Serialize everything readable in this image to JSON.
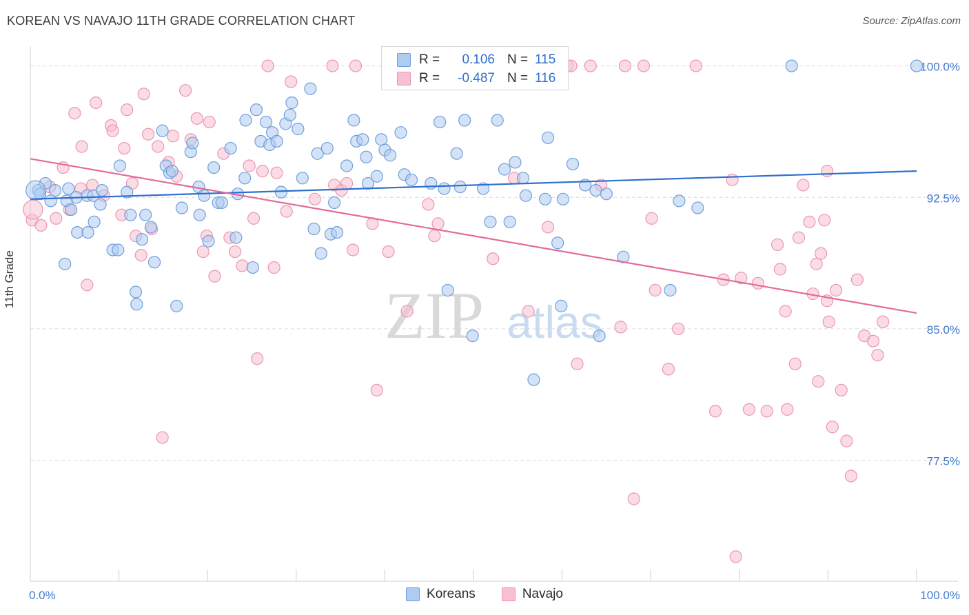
{
  "title": "KOREAN VS NAVAJO 11TH GRADE CORRELATION CHART",
  "source": "Source: ZipAtlas.com",
  "watermark": {
    "zip": "ZIP",
    "atlas": "atlas"
  },
  "legend": {
    "rows": [
      {
        "r_label": "R =",
        "r_value": "0.106",
        "n_label": "N =",
        "n_value": "115"
      },
      {
        "r_label": "R =",
        "r_value": "-0.487",
        "n_label": "N =",
        "n_value": "116"
      }
    ]
  },
  "bottom_legend": [
    "Koreans",
    "Navajo"
  ],
  "colors": {
    "korean_fill": "#aecbf0",
    "korean_stroke": "#6f9fdc",
    "korean_line": "#2f6fcf",
    "navajo_fill": "#f7bfd0",
    "navajo_stroke": "#ec95b2",
    "navajo_line": "#e46a9a",
    "tick_label": "#3f78d0",
    "grid": "#dcdcdc"
  },
  "chart_data": {
    "type": "scatter",
    "title": "KOREAN VS NAVAJO 11TH GRADE CORRELATION CHART",
    "xlabel": "",
    "ylabel": "11th Grade",
    "xlim": [
      0,
      100
    ],
    "ylim": [
      70.6,
      101.4
    ],
    "x_tick_labels": [
      "0.0%",
      "100.0%"
    ],
    "y_ticks": [
      77.5,
      85.0,
      92.5,
      100.0
    ],
    "y_tick_labels": [
      "77.5%",
      "85.0%",
      "92.5%",
      "100.0%"
    ],
    "grid": "horizontal dashed",
    "legend_position": "top-center",
    "series": [
      {
        "name": "Koreans",
        "r": 0.106,
        "n": 115,
        "trend": [
          [
            0,
            92.4
          ],
          [
            100,
            94.0
          ]
        ],
        "points": [
          [
            0.9,
            92.9
          ],
          [
            1.1,
            92.7
          ],
          [
            1.7,
            93.3
          ],
          [
            2.3,
            92.3
          ],
          [
            2.8,
            92.9
          ],
          [
            4.1,
            92.3
          ],
          [
            4.3,
            93.0
          ],
          [
            3.9,
            88.7
          ],
          [
            4.6,
            91.8
          ],
          [
            5.2,
            92.5
          ],
          [
            5.3,
            90.5
          ],
          [
            6.4,
            92.6
          ],
          [
            6.5,
            90.5
          ],
          [
            7.1,
            92.6
          ],
          [
            7.2,
            91.1
          ],
          [
            7.9,
            92.1
          ],
          [
            8.1,
            92.9
          ],
          [
            9.3,
            89.5
          ],
          [
            9.9,
            89.5
          ],
          [
            10.1,
            94.3
          ],
          [
            10.9,
            92.8
          ],
          [
            11.3,
            91.5
          ],
          [
            11.9,
            87.1
          ],
          [
            12.0,
            86.4
          ],
          [
            12.6,
            90.1
          ],
          [
            13.0,
            91.5
          ],
          [
            13.6,
            90.8
          ],
          [
            14.0,
            88.8
          ],
          [
            14.9,
            96.3
          ],
          [
            15.3,
            94.3
          ],
          [
            15.7,
            93.9
          ],
          [
            16.0,
            94.0
          ],
          [
            16.5,
            86.3
          ],
          [
            17.1,
            91.9
          ],
          [
            18.1,
            95.1
          ],
          [
            18.3,
            95.6
          ],
          [
            19.0,
            93.1
          ],
          [
            19.1,
            91.5
          ],
          [
            19.6,
            92.6
          ],
          [
            20.1,
            90.0
          ],
          [
            20.7,
            94.2
          ],
          [
            21.2,
            92.2
          ],
          [
            21.6,
            92.2
          ],
          [
            22.6,
            95.3
          ],
          [
            23.2,
            90.2
          ],
          [
            23.4,
            92.7
          ],
          [
            24.2,
            93.6
          ],
          [
            24.3,
            96.9
          ],
          [
            25.1,
            88.5
          ],
          [
            25.5,
            97.5
          ],
          [
            26.0,
            95.7
          ],
          [
            26.6,
            96.8
          ],
          [
            27.0,
            95.5
          ],
          [
            27.3,
            96.2
          ],
          [
            27.8,
            95.7
          ],
          [
            28.3,
            92.8
          ],
          [
            28.8,
            96.7
          ],
          [
            29.3,
            97.2
          ],
          [
            29.5,
            97.9
          ],
          [
            30.2,
            96.4
          ],
          [
            30.7,
            93.6
          ],
          [
            31.6,
            98.7
          ],
          [
            32.0,
            90.7
          ],
          [
            32.4,
            95.0
          ],
          [
            32.8,
            89.3
          ],
          [
            33.5,
            95.3
          ],
          [
            33.9,
            90.4
          ],
          [
            34.3,
            92.2
          ],
          [
            34.6,
            90.5
          ],
          [
            35.7,
            94.3
          ],
          [
            36.5,
            96.9
          ],
          [
            36.8,
            95.7
          ],
          [
            37.5,
            95.8
          ],
          [
            37.9,
            94.8
          ],
          [
            38.1,
            93.3
          ],
          [
            39.1,
            93.7
          ],
          [
            39.6,
            95.8
          ],
          [
            40.0,
            95.2
          ],
          [
            40.6,
            94.9
          ],
          [
            41.8,
            96.2
          ],
          [
            42.2,
            93.8
          ],
          [
            43.0,
            93.5
          ],
          [
            45.2,
            93.3
          ],
          [
            46.2,
            96.8
          ],
          [
            46.7,
            93.0
          ],
          [
            48.1,
            95.0
          ],
          [
            48.5,
            93.1
          ],
          [
            47.1,
            87.2
          ],
          [
            49.0,
            96.9
          ],
          [
            49.9,
            84.6
          ],
          [
            51.1,
            93.0
          ],
          [
            51.9,
            91.1
          ],
          [
            52.7,
            96.9
          ],
          [
            53.5,
            94.1
          ],
          [
            54.1,
            91.1
          ],
          [
            54.7,
            94.5
          ],
          [
            55.6,
            93.6
          ],
          [
            55.9,
            92.6
          ],
          [
            56.8,
            82.1
          ],
          [
            58.1,
            92.4
          ],
          [
            58.4,
            95.9
          ],
          [
            59.5,
            89.9
          ],
          [
            59.9,
            86.3
          ],
          [
            60.1,
            92.4
          ],
          [
            61.2,
            94.4
          ],
          [
            62.6,
            93.2
          ],
          [
            63.8,
            92.9
          ],
          [
            64.2,
            84.6
          ],
          [
            65.0,
            92.7
          ],
          [
            66.9,
            89.1
          ],
          [
            72.2,
            87.2
          ],
          [
            73.2,
            92.3
          ],
          [
            75.3,
            91.9
          ],
          [
            85.9,
            100.0
          ],
          [
            100.0,
            100.0
          ]
        ]
      },
      {
        "name": "Navajo",
        "r": -0.487,
        "n": 116,
        "trend": [
          [
            0,
            94.7
          ],
          [
            100,
            85.9
          ]
        ],
        "points": [
          [
            0.2,
            91.2
          ],
          [
            1.2,
            90.9
          ],
          [
            2.2,
            93.1
          ],
          [
            2.9,
            91.3
          ],
          [
            3.7,
            94.2
          ],
          [
            4.4,
            91.8
          ],
          [
            5.0,
            97.3
          ],
          [
            5.8,
            95.4
          ],
          [
            5.7,
            93.0
          ],
          [
            6.4,
            87.5
          ],
          [
            7.0,
            93.2
          ],
          [
            7.4,
            97.9
          ],
          [
            8.3,
            92.6
          ],
          [
            9.1,
            96.6
          ],
          [
            9.3,
            96.3
          ],
          [
            10.3,
            91.5
          ],
          [
            10.6,
            95.3
          ],
          [
            10.9,
            97.5
          ],
          [
            11.5,
            93.3
          ],
          [
            11.9,
            90.3
          ],
          [
            12.5,
            89.2
          ],
          [
            12.8,
            98.4
          ],
          [
            13.3,
            96.1
          ],
          [
            13.7,
            90.7
          ],
          [
            14.4,
            95.4
          ],
          [
            14.9,
            78.8
          ],
          [
            15.6,
            94.5
          ],
          [
            16.1,
            96.0
          ],
          [
            16.5,
            93.7
          ],
          [
            17.5,
            98.6
          ],
          [
            18.1,
            95.8
          ],
          [
            18.8,
            97.0
          ],
          [
            19.5,
            89.4
          ],
          [
            19.9,
            90.3
          ],
          [
            20.2,
            96.8
          ],
          [
            20.8,
            88.0
          ],
          [
            21.8,
            95.0
          ],
          [
            22.5,
            90.2
          ],
          [
            23.1,
            89.4
          ],
          [
            23.9,
            88.6
          ],
          [
            24.7,
            94.3
          ],
          [
            25.2,
            91.3
          ],
          [
            25.6,
            83.3
          ],
          [
            26.2,
            94.0
          ],
          [
            26.8,
            100.0
          ],
          [
            27.5,
            88.5
          ],
          [
            27.8,
            93.9
          ],
          [
            28.9,
            91.7
          ],
          [
            29.4,
            99.1
          ],
          [
            32.1,
            92.4
          ],
          [
            34.3,
            93.2
          ],
          [
            34.1,
            100.0
          ],
          [
            35.1,
            92.9
          ],
          [
            35.7,
            93.3
          ],
          [
            36.4,
            89.5
          ],
          [
            36.7,
            100.0
          ],
          [
            38.6,
            91.0
          ],
          [
            39.1,
            81.5
          ],
          [
            40.4,
            89.4
          ],
          [
            42.5,
            86.0
          ],
          [
            44.9,
            92.1
          ],
          [
            45.6,
            90.3
          ],
          [
            46.0,
            91.0
          ],
          [
            52.2,
            89.0
          ],
          [
            52.5,
            100.0
          ],
          [
            54.6,
            93.6
          ],
          [
            56.2,
            86.0
          ],
          [
            58.4,
            90.8
          ],
          [
            60.6,
            100.0
          ],
          [
            61.0,
            100.0
          ],
          [
            61.7,
            83.0
          ],
          [
            63.2,
            100.0
          ],
          [
            64.4,
            93.2
          ],
          [
            66.6,
            85.1
          ],
          [
            67.1,
            100.0
          ],
          [
            68.1,
            75.3
          ],
          [
            69.2,
            100.0
          ],
          [
            70.1,
            91.3
          ],
          [
            70.5,
            87.2
          ],
          [
            72.0,
            82.7
          ],
          [
            73.1,
            85.0
          ],
          [
            75.1,
            100.0
          ],
          [
            77.3,
            80.3
          ],
          [
            78.2,
            87.8
          ],
          [
            79.2,
            93.5
          ],
          [
            79.6,
            72.0
          ],
          [
            80.2,
            87.9
          ],
          [
            81.1,
            80.4
          ],
          [
            82.1,
            87.6
          ],
          [
            83.1,
            80.3
          ],
          [
            84.3,
            89.8
          ],
          [
            84.6,
            88.4
          ],
          [
            85.2,
            86.0
          ],
          [
            85.4,
            80.4
          ],
          [
            86.3,
            83.0
          ],
          [
            86.7,
            90.2
          ],
          [
            87.2,
            93.2
          ],
          [
            87.9,
            91.1
          ],
          [
            88.3,
            87.0
          ],
          [
            88.7,
            88.7
          ],
          [
            88.9,
            82.0
          ],
          [
            89.2,
            89.3
          ],
          [
            89.6,
            91.2
          ],
          [
            89.9,
            94.0
          ],
          [
            89.9,
            86.6
          ],
          [
            90.1,
            85.4
          ],
          [
            90.5,
            79.4
          ],
          [
            90.9,
            87.2
          ],
          [
            91.5,
            81.5
          ],
          [
            92.1,
            78.6
          ],
          [
            92.6,
            76.6
          ],
          [
            93.3,
            87.8
          ],
          [
            94.1,
            84.6
          ],
          [
            95.1,
            84.3
          ],
          [
            95.6,
            83.5
          ],
          [
            96.2,
            85.4
          ]
        ]
      }
    ]
  }
}
